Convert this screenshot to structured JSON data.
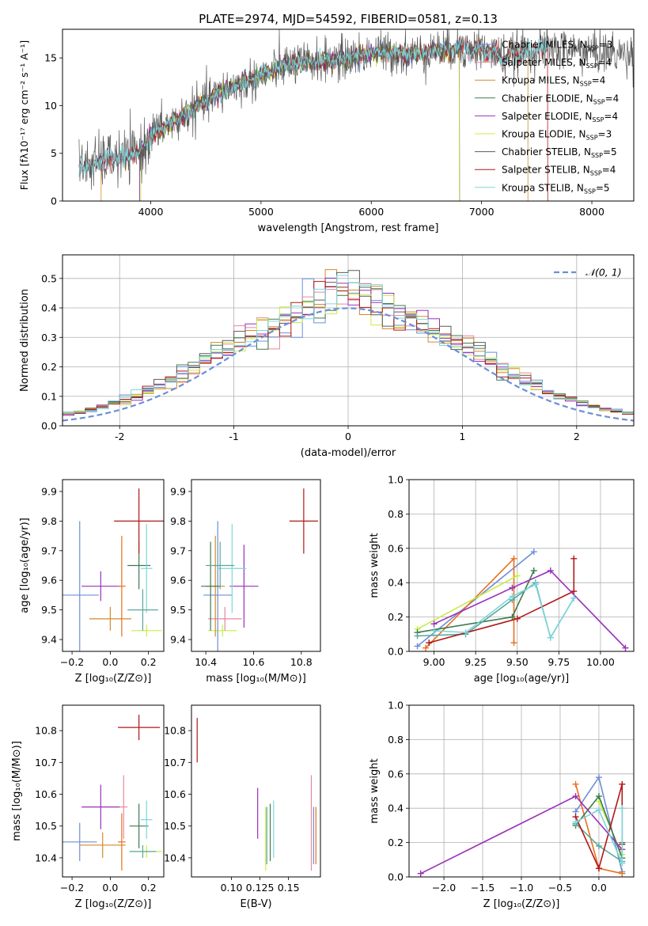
{
  "figure": {
    "title": "PLATE=2974, MJD=54592, FIBERID=0581, z=0.13"
  },
  "colors": {
    "Chabrier MILES": "#6c8fd6",
    "Salpeter MILES": "#e8889e",
    "Kroupa MILES": "#d28a2a",
    "Chabrier ELODIE": "#3f7a50",
    "Salpeter ELODIE": "#9930b8",
    "Kroupa ELODIE": "#c8ec48",
    "Chabrier STELIB": "#5a5a5a",
    "Salpeter STELIB": "#b01818",
    "Kroupa STELIB": "#7dd6dc",
    "extra_orange": "#e8701e",
    "extra_teal": "#5aa89a",
    "normal_curve": "#6a8fd8",
    "grid": "#b0b0b0"
  },
  "chart_data": [
    {
      "id": "spectrum",
      "type": "line",
      "title": "PLATE=2974, MJD=54592, FIBERID=0581, z=0.13",
      "xlabel": "wavelength [Angstrom, rest frame]",
      "ylabel": "Flux [fλ10⁻¹⁷ erg cm⁻² s⁻¹ A⁻¹]",
      "xlim": [
        3200,
        8380
      ],
      "ylim": [
        0,
        18
      ],
      "xticks": [
        4000,
        5000,
        6000,
        7000,
        8000
      ],
      "yticks": [
        0,
        5,
        10,
        15
      ],
      "grid": false,
      "legend_position": "top-right",
      "continuum_points": [
        [
          3350,
          3.6
        ],
        [
          3450,
          3.7
        ],
        [
          3600,
          4.4
        ],
        [
          3800,
          4.6
        ],
        [
          3950,
          5.6
        ],
        [
          4000,
          7.0
        ],
        [
          4300,
          8.9
        ],
        [
          4500,
          10.5
        ],
        [
          4700,
          11.8
        ],
        [
          4900,
          12.6
        ],
        [
          5000,
          13.1
        ],
        [
          5200,
          14.2
        ],
        [
          5500,
          14.6
        ],
        [
          5800,
          15.0
        ],
        [
          6000,
          15.5
        ],
        [
          6200,
          15.5
        ],
        [
          6400,
          15.4
        ],
        [
          6600,
          15.8
        ],
        [
          6800,
          16.0
        ],
        [
          7000,
          15.9
        ],
        [
          7200,
          15.1
        ],
        [
          7400,
          15.7
        ],
        [
          7600,
          16.0
        ],
        [
          7800,
          15.9
        ],
        [
          8000,
          15.6
        ],
        [
          8300,
          15.4
        ]
      ],
      "series": [
        {
          "name": "Chabrier MILES, N_SSP=3",
          "label_text": "Chabrier MILES, N",
          "sub": "SSP",
          "suffix": "=3",
          "color": "#6c8fd6",
          "range": [
            3500,
            7400
          ]
        },
        {
          "name": "Salpeter MILES, N_SSP=4",
          "label_text": "Salpeter MILES, N",
          "sub": "SSP",
          "suffix": "=4",
          "color": "#e8889e",
          "range": [
            3500,
            7400
          ]
        },
        {
          "name": "Kroupa MILES, N_SSP=4",
          "label_text": "Kroupa MILES, N",
          "sub": "SSP",
          "suffix": "=4",
          "color": "#d28a2a",
          "range": [
            3550,
            7420
          ]
        },
        {
          "name": "Chabrier ELODIE, N_SSP=4",
          "label_text": "Chabrier ELODIE, N",
          "sub": "SSP",
          "suffix": "=4",
          "color": "#3f7a50",
          "range": [
            3900,
            6800
          ]
        },
        {
          "name": "Salpeter ELODIE, N_SSP=4",
          "label_text": "Salpeter ELODIE, N",
          "sub": "SSP",
          "suffix": "=4",
          "color": "#9930b8",
          "range": [
            3900,
            6800
          ]
        },
        {
          "name": "Kroupa ELODIE, N_SSP=3",
          "label_text": "Kroupa ELODIE, N",
          "sub": "SSP",
          "suffix": "=3",
          "color": "#c8ec48",
          "range": [
            3910,
            6800
          ]
        },
        {
          "name": "Chabrier STELIB, N_SSP=5",
          "label_text": "Chabrier STELIB, N",
          "sub": "SSP",
          "suffix": "=5",
          "color": "#5a5a5a",
          "range": [
            3350,
            8380
          ]
        },
        {
          "name": "Salpeter STELIB, N_SSP=4",
          "label_text": "Salpeter STELIB, N",
          "sub": "SSP",
          "suffix": "=4",
          "color": "#b01818",
          "range": [
            3350,
            7600
          ]
        },
        {
          "name": "Kroupa STELIB, N_SSP=5",
          "label_text": "Kroupa STELIB, N",
          "sub": "SSP",
          "suffix": "=5",
          "color": "#7dd6dc",
          "range": [
            3350,
            7600
          ]
        }
      ]
    },
    {
      "id": "residual-histogram",
      "type": "histogram",
      "xlabel": "(data-model)/error",
      "ylabel": "Normed distribution",
      "xlim": [
        -2.5,
        2.5
      ],
      "ylim": [
        0,
        0.58
      ],
      "xticks": [
        -2,
        -1,
        0,
        1,
        2
      ],
      "yticks": [
        0.0,
        0.1,
        0.2,
        0.3,
        0.4,
        0.5
      ],
      "grid": true,
      "legend_position": "top-right",
      "legend": "𝒩(0, 1)",
      "bin_width": 0.1,
      "reference_curve": "normal(0,1)",
      "series_colors": [
        "#6c8fd6",
        "#e8889e",
        "#d28a2a",
        "#3f7a50",
        "#9930b8",
        "#c8ec48",
        "#5a5a5a",
        "#b01818",
        "#7dd6dc"
      ]
    },
    {
      "id": "age-vs-Z",
      "type": "errorbar",
      "xlabel": "Z [log₁₀(Z/Z⊙)]",
      "ylabel": "age  [log₁₀(age/yr)]",
      "xlim": [
        -0.25,
        0.28
      ],
      "ylim": [
        9.36,
        9.94
      ],
      "xticks": [
        -0.2,
        0.0,
        0.2
      ],
      "xtick_labels": [
        "−0.2",
        "0.0",
        "0.2"
      ],
      "yticks": [
        9.4,
        9.5,
        9.6,
        9.7,
        9.8,
        9.9
      ],
      "grid": false,
      "points": [
        {
          "x": -0.16,
          "xerr": 0.1,
          "y": 9.55,
          "yerr": 0.25,
          "color": "#6c8fd6"
        },
        {
          "x": 0.0,
          "xerr": 0.11,
          "y": 9.47,
          "yerr": 0.04,
          "color": "#d28a2a"
        },
        {
          "x": -0.05,
          "xerr": 0.1,
          "y": 9.58,
          "yerr": 0.05,
          "color": "#9930b8"
        },
        {
          "x": 0.06,
          "xerr": 0.02,
          "y": 9.58,
          "yerr": 0.17,
          "color": "#e8701e"
        },
        {
          "x": 0.15,
          "xerr": 0.06,
          "y": 9.65,
          "yerr": 0.08,
          "color": "#3f7a50"
        },
        {
          "x": 0.19,
          "xerr": 0.03,
          "y": 9.64,
          "yerr": 0.15,
          "color": "#7dd6dc"
        },
        {
          "x": 0.19,
          "xerr": 0.08,
          "y": 9.43,
          "yerr": 0.02,
          "color": "#c8ec48"
        },
        {
          "x": 0.17,
          "xerr": 0.08,
          "y": 9.5,
          "yerr": 0.07,
          "color": "#5aa89a"
        },
        {
          "x": 0.15,
          "xerr": 0.13,
          "y": 9.8,
          "yerr": 0.11,
          "color": "#b01818"
        }
      ]
    },
    {
      "id": "age-vs-mass",
      "type": "errorbar",
      "xlabel": "mass [log₁₀(M/M⊙)]",
      "ylabel": "",
      "xlim": [
        10.34,
        10.88
      ],
      "ylim": [
        9.36,
        9.94
      ],
      "xticks": [
        10.4,
        10.6,
        10.8
      ],
      "yticks": [
        9.4,
        9.5,
        9.6,
        9.7,
        9.8,
        9.9
      ],
      "grid": false,
      "points": [
        {
          "x": 10.47,
          "xerr": 0.06,
          "y": 9.43,
          "yerr": 0.02,
          "color": "#c8ec48"
        },
        {
          "x": 10.45,
          "xerr": 0.06,
          "y": 9.55,
          "yerr": 0.25,
          "color": "#6c8fd6"
        },
        {
          "x": 10.48,
          "xerr": 0.07,
          "y": 9.47,
          "yerr": 0.04,
          "color": "#e8889e"
        },
        {
          "x": 10.56,
          "xerr": 0.06,
          "y": 9.58,
          "yerr": 0.14,
          "color": "#9930b8"
        },
        {
          "x": 10.44,
          "xerr": 0.04,
          "y": 9.58,
          "yerr": 0.17,
          "color": "#d28a2a"
        },
        {
          "x": 10.42,
          "xerr": 0.04,
          "y": 9.58,
          "yerr": 0.15,
          "color": "#3f7a50"
        },
        {
          "x": 10.51,
          "xerr": 0.06,
          "y": 9.64,
          "yerr": 0.15,
          "color": "#7dd6dc"
        },
        {
          "x": 10.46,
          "xerr": 0.06,
          "y": 9.65,
          "yerr": 0.08,
          "color": "#5aa89a"
        },
        {
          "x": 10.81,
          "xerr": 0.06,
          "y": 9.8,
          "yerr": 0.11,
          "color": "#b01818"
        }
      ]
    },
    {
      "id": "mass-weight-vs-age",
      "type": "line",
      "xlabel": "age  [log₁₀(age/yr)]",
      "ylabel": "mass weight",
      "xlim": [
        8.85,
        10.2
      ],
      "ylim": [
        0,
        1
      ],
      "xticks": [
        9.0,
        9.25,
        9.5,
        9.75,
        10.0
      ],
      "xtick_labels": [
        "9.00",
        "9.25",
        "9.50",
        "9.75",
        "10.00"
      ],
      "yticks": [
        0.0,
        0.2,
        0.4,
        0.6,
        0.8,
        1.0
      ],
      "grid": true,
      "series": [
        {
          "color": "#6c8fd6",
          "x": [
            8.9,
            9.6
          ],
          "y": [
            0.03,
            0.58
          ]
        },
        {
          "color": "#e8701e",
          "x": [
            8.95,
            9.48,
            9.48
          ],
          "y": [
            0.02,
            0.54,
            0.05
          ]
        },
        {
          "color": "#c8ec48",
          "x": [
            8.9,
            9.5
          ],
          "y": [
            0.13,
            0.44
          ]
        },
        {
          "color": "#3f7a50",
          "x": [
            8.9,
            9.47,
            9.6
          ],
          "y": [
            0.11,
            0.2,
            0.47
          ]
        },
        {
          "color": "#5aa89a",
          "x": [
            8.9,
            9.19,
            9.47,
            9.61,
            9.7,
            9.84
          ],
          "y": [
            0.09,
            0.1,
            0.3,
            0.4,
            0.08,
            0.31
          ]
        },
        {
          "color": "#b01818",
          "x": [
            8.97,
            9.5,
            9.84,
            9.84
          ],
          "y": [
            0.05,
            0.19,
            0.35,
            0.54
          ]
        },
        {
          "color": "#9930b8",
          "x": [
            9.0,
            9.47,
            9.7,
            10.15
          ],
          "y": [
            0.16,
            0.37,
            0.47,
            0.02
          ]
        },
        {
          "color": "#7dd6dc",
          "x": [
            9.0,
            9.19,
            9.47,
            9.61,
            9.7,
            9.84
          ],
          "y": [
            0.12,
            0.11,
            0.32,
            0.39,
            0.08,
            0.31
          ]
        }
      ]
    },
    {
      "id": "mass-vs-Z",
      "type": "errorbar",
      "xlabel": "Z [log₁₀(Z/Z⊙)]",
      "ylabel": "mass [log₁₀(M/M⊙)]",
      "xlim": [
        -0.25,
        0.28
      ],
      "ylim": [
        10.34,
        10.88
      ],
      "xticks": [
        -0.2,
        0.0,
        0.2
      ],
      "xtick_labels": [
        "−0.2",
        "0.0",
        "0.2"
      ],
      "yticks": [
        10.4,
        10.5,
        10.6,
        10.7,
        10.8
      ],
      "grid": false,
      "points": [
        {
          "x": -0.16,
          "xerr": 0.09,
          "y": 10.45,
          "yerr": 0.06,
          "color": "#6c8fd6"
        },
        {
          "x": -0.04,
          "xerr": 0.12,
          "y": 10.44,
          "yerr": 0.04,
          "color": "#d28a2a"
        },
        {
          "x": -0.05,
          "xerr": 0.1,
          "y": 10.56,
          "yerr": 0.07,
          "color": "#9930b8"
        },
        {
          "x": 0.06,
          "xerr": 0.02,
          "y": 10.45,
          "yerr": 0.09,
          "color": "#e8701e"
        },
        {
          "x": 0.07,
          "xerr": 0.02,
          "y": 10.56,
          "yerr": 0.1,
          "color": "#e8889e"
        },
        {
          "x": 0.15,
          "xerr": 0.05,
          "y": 10.5,
          "yerr": 0.07,
          "color": "#3f7a50"
        },
        {
          "x": 0.19,
          "xerr": 0.03,
          "y": 10.52,
          "yerr": 0.06,
          "color": "#7dd6dc"
        },
        {
          "x": 0.19,
          "xerr": 0.08,
          "y": 10.42,
          "yerr": 0.02,
          "color": "#c8ec48"
        },
        {
          "x": 0.17,
          "xerr": 0.07,
          "y": 10.42,
          "yerr": 0.02,
          "color": "#5aa89a"
        },
        {
          "x": 0.15,
          "xerr": 0.11,
          "y": 10.81,
          "yerr": 0.04,
          "color": "#b01818"
        }
      ]
    },
    {
      "id": "mass-vs-EBV",
      "type": "errorbar",
      "xlabel": "E(B-V)",
      "ylabel": "",
      "xlim": [
        0.065,
        0.178
      ],
      "ylim": [
        10.34,
        10.88
      ],
      "xticks": [
        0.1,
        0.125,
        0.15
      ],
      "xtick_labels": [
        "0.10",
        "0.125",
        "0.15"
      ],
      "yticks": [
        10.4,
        10.5,
        10.6,
        10.7,
        10.8
      ],
      "grid": false,
      "points": [
        {
          "x": 0.07,
          "y": 10.77,
          "yerr": 0.07,
          "color": "#b01818"
        },
        {
          "x": 0.123,
          "y": 10.54,
          "yerr": 0.08,
          "color": "#9930b8"
        },
        {
          "x": 0.13,
          "y": 10.46,
          "yerr": 0.1,
          "color": "#c8ec48"
        },
        {
          "x": 0.131,
          "y": 10.47,
          "yerr": 0.09,
          "color": "#5aa89a"
        },
        {
          "x": 0.134,
          "y": 10.48,
          "yerr": 0.09,
          "color": "#3f7a50"
        },
        {
          "x": 0.137,
          "y": 10.49,
          "yerr": 0.09,
          "color": "#7dd6dc"
        },
        {
          "x": 0.17,
          "y": 10.51,
          "yerr": 0.15,
          "color": "#e8889e"
        },
        {
          "x": 0.172,
          "y": 10.47,
          "yerr": 0.09,
          "color": "#6c8fd6"
        },
        {
          "x": 0.174,
          "y": 10.47,
          "yerr": 0.09,
          "color": "#e8701e"
        }
      ]
    },
    {
      "id": "mass-weight-vs-Z",
      "type": "line",
      "xlabel": "Z [log₁₀(Z/Z⊙)]",
      "ylabel": "mass weight",
      "xlim": [
        -2.45,
        0.45
      ],
      "ylim": [
        0,
        1
      ],
      "xticks": [
        -2.0,
        -1.5,
        -1.0,
        -0.5,
        0.0
      ],
      "xtick_labels": [
        "−2.0",
        "−1.5",
        "−1.0",
        "−0.5",
        "0.0"
      ],
      "yticks": [
        0.0,
        0.2,
        0.4,
        0.6,
        0.8,
        1.0
      ],
      "grid": true,
      "series": [
        {
          "color": "#6c8fd6",
          "x": [
            -0.3,
            0.0,
            0.3
          ],
          "y": [
            0.38,
            0.58,
            0.03
          ]
        },
        {
          "color": "#e8701e",
          "x": [
            -0.3,
            0.0,
            0.3
          ],
          "y": [
            0.54,
            0.05,
            0.02
          ]
        },
        {
          "color": "#c8ec48",
          "x": [
            0.0,
            0.3
          ],
          "y": [
            0.44,
            0.13
          ]
        },
        {
          "color": "#3f7a50",
          "x": [
            -0.3,
            0.0,
            0.3,
            0.3
          ],
          "y": [
            0.3,
            0.47,
            0.11,
            0.2
          ]
        },
        {
          "color": "#5aa89a",
          "x": [
            -0.3,
            0.0,
            0.3
          ],
          "y": [
            0.31,
            0.18,
            0.09
          ]
        },
        {
          "color": "#b01818",
          "x": [
            -0.3,
            0.0,
            0.3,
            0.3
          ],
          "y": [
            0.35,
            0.05,
            0.54,
            0.19
          ]
        },
        {
          "color": "#9930b8",
          "x": [
            -2.3,
            -0.3,
            0.3
          ],
          "y": [
            0.02,
            0.47,
            0.16
          ]
        },
        {
          "color": "#7dd6dc",
          "x": [
            -0.3,
            0.0,
            0.3,
            0.3
          ],
          "y": [
            0.32,
            0.39,
            0.08,
            0.4
          ]
        }
      ]
    }
  ]
}
